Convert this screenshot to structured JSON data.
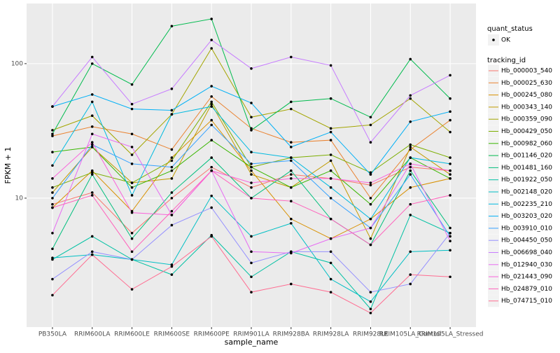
{
  "chart_data": {
    "type": "line",
    "x_label": "sample_name",
    "y_label": "FPKM + 1",
    "categories": [
      "PB350LA",
      "RRIM600LA",
      "RRIM600LE",
      "RRIM600SE",
      "RRIM600PE",
      "RRIM901LA",
      "RRIM928BA",
      "RRIM928LA",
      "RRIM928LE",
      "RRIM105LA_Control",
      "RRIM105LA_Stressed"
    ],
    "log_y": true,
    "ylim": [
      1.1,
      280
    ],
    "yticks": [
      10,
      100
    ],
    "grid": true,
    "point_color": "#000000",
    "shape_legend": {
      "title": "quant_status",
      "labels": [
        "OK"
      ]
    },
    "color_legend_title": "tracking_id",
    "series": [
      {
        "name": "Hb_000003_540",
        "color": "#F8766D",
        "values": [
          9,
          11,
          5.5,
          10,
          17,
          12,
          15,
          14,
          12.5,
          17,
          16
        ]
      },
      {
        "name": "Hb_000025_630",
        "color": "#EA8331",
        "values": [
          29,
          34,
          30,
          23,
          57,
          33,
          26,
          27,
          10,
          23,
          38
        ]
      },
      {
        "name": "Hb_000245_080",
        "color": "#D89000",
        "values": [
          8.5,
          16,
          8,
          20,
          38,
          16,
          7,
          5,
          7,
          12,
          14
        ]
      },
      {
        "name": "Hb_000343_140",
        "color": "#C09B00",
        "values": [
          11,
          24,
          13,
          14,
          50,
          15,
          12,
          19,
          5,
          24,
          15
        ]
      },
      {
        "name": "Hb_000359_090",
        "color": "#A3A500",
        "values": [
          32,
          41,
          21,
          42,
          130,
          40,
          46,
          33,
          35,
          55,
          31
        ]
      },
      {
        "name": "Hb_000429_050",
        "color": "#7CAE00",
        "values": [
          12,
          15.5,
          13,
          19,
          52,
          17,
          20,
          21,
          15.5,
          25,
          20
        ]
      },
      {
        "name": "Hb_000982_060",
        "color": "#39B600",
        "values": [
          22,
          24,
          12,
          16,
          27,
          17,
          12,
          16,
          9,
          20,
          14
        ]
      },
      {
        "name": "Hb_001146_020",
        "color": "#00BB4E",
        "values": [
          30,
          100,
          70,
          190,
          215,
          32,
          52,
          55,
          40,
          108,
          55
        ]
      },
      {
        "name": "Hb_001481_160",
        "color": "#00BF7D",
        "values": [
          4.2,
          15,
          5,
          11,
          20,
          10,
          16,
          7,
          4.5,
          16,
          6
        ]
      },
      {
        "name": "Hb_001922_050",
        "color": "#00C1A3",
        "values": [
          3.5,
          5.2,
          3.5,
          2.7,
          5.3,
          2.6,
          4,
          3.3,
          1.5,
          7.5,
          5.5
        ]
      },
      {
        "name": "Hb_002148_020",
        "color": "#00BFC4",
        "values": [
          3.6,
          3.8,
          3.5,
          3.2,
          10.4,
          5.2,
          6.5,
          2.5,
          1.7,
          4,
          4.1
        ]
      },
      {
        "name": "Hb_002235_210",
        "color": "#00BAE0",
        "values": [
          17.5,
          52,
          10.5,
          42,
          48,
          22,
          20,
          12,
          7,
          20,
          18
        ]
      },
      {
        "name": "Hb_003203_020",
        "color": "#00B0F6",
        "values": [
          48,
          59,
          46,
          45,
          68,
          51,
          24,
          31,
          15,
          37,
          44
        ]
      },
      {
        "name": "Hb_003910_010",
        "color": "#35A2FF",
        "values": [
          10,
          25,
          18,
          17,
          35,
          18,
          19,
          10,
          6,
          15,
          5.2
        ]
      },
      {
        "name": "Hb_004450_050",
        "color": "#9590FF",
        "values": [
          2.5,
          4,
          3.5,
          6.3,
          8.5,
          3.3,
          4,
          4,
          2,
          2.3,
          5.5
        ]
      },
      {
        "name": "Hb_006698_040",
        "color": "#C77CFF",
        "values": [
          48,
          112,
          50,
          65,
          150,
          92,
          112,
          97,
          26,
          58,
          82
        ]
      },
      {
        "name": "Hb_012940_030",
        "color": "#E76BF3",
        "values": [
          5.5,
          30,
          24,
          7.5,
          16,
          4,
          3.9,
          5,
          6,
          18,
          4.8
        ]
      },
      {
        "name": "Hb_021443_090",
        "color": "#FA62DB",
        "values": [
          14,
          26,
          7.8,
          7.5,
          16,
          13,
          14,
          14,
          13,
          18,
          16
        ]
      },
      {
        "name": "Hb_024879_010",
        "color": "#FF62BC",
        "values": [
          8.5,
          10.5,
          4,
          8,
          16,
          10,
          9.5,
          7,
          4.5,
          9,
          10.5
        ]
      },
      {
        "name": "Hb_074715_010",
        "color": "#FF6C91",
        "values": [
          1.9,
          3.8,
          2.1,
          3.1,
          5.2,
          2.0,
          2.3,
          2.0,
          1.4,
          2.7,
          2.6
        ]
      }
    ]
  }
}
